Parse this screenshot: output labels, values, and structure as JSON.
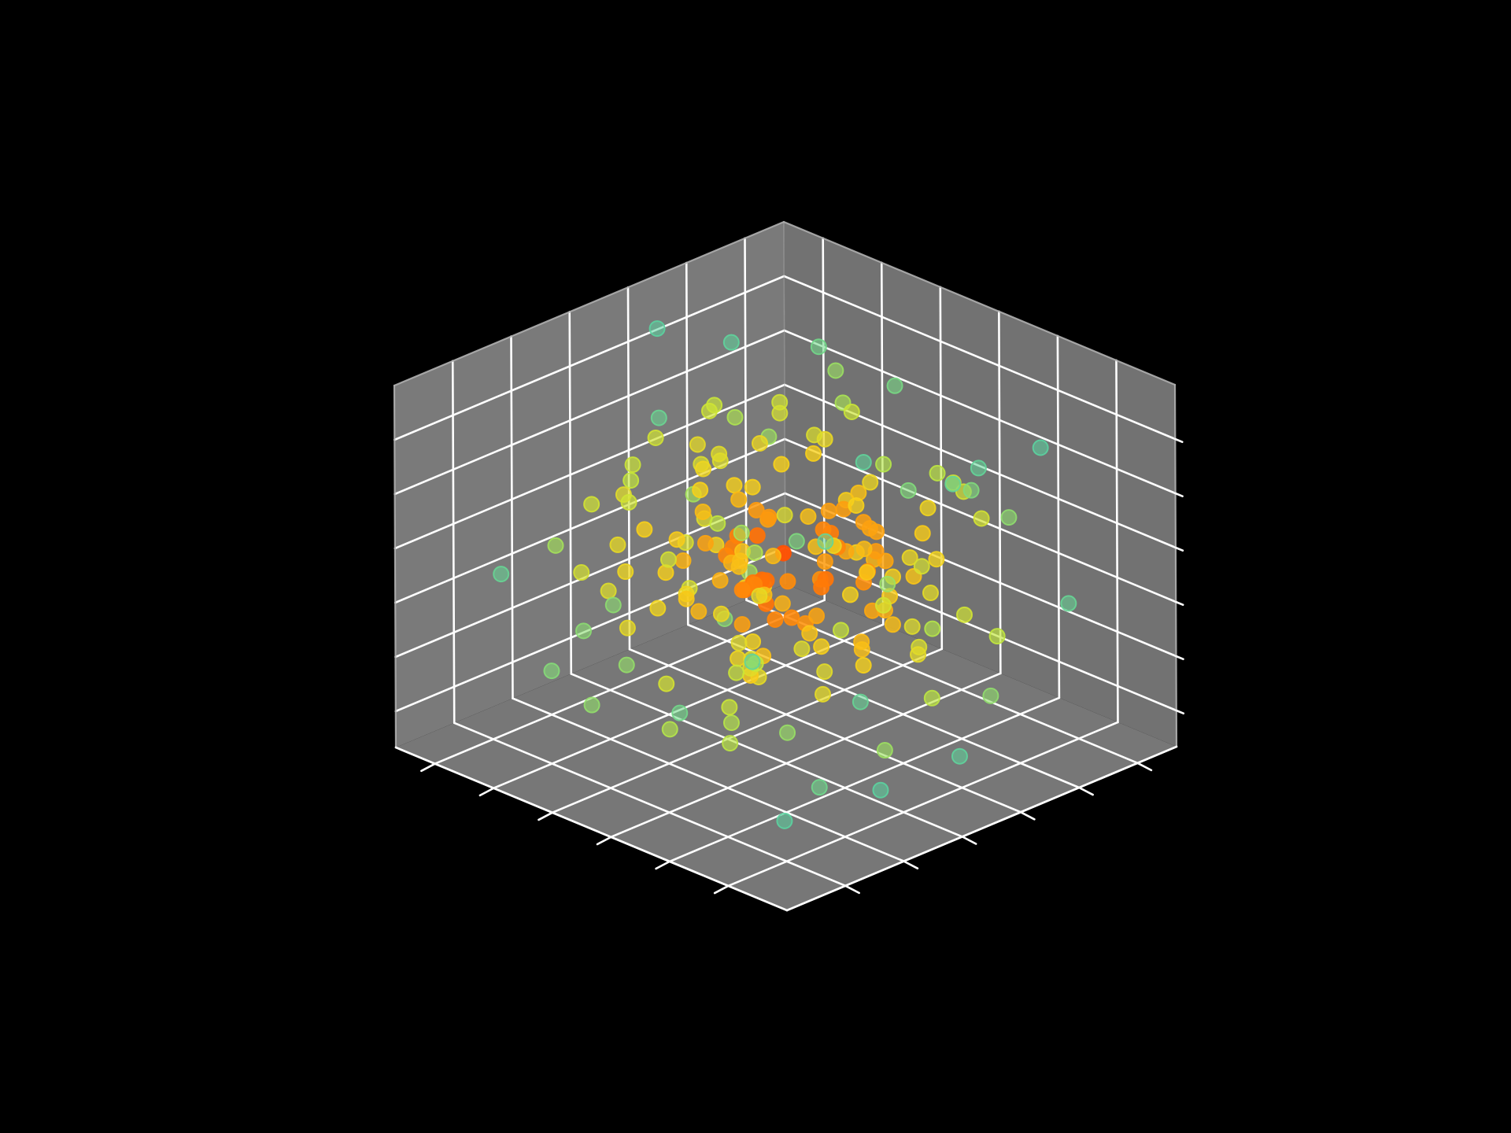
{
  "chart_data": {
    "type": "scatter",
    "projection": "3d",
    "title": "",
    "xlabel": "",
    "ylabel": "",
    "zlabel": "",
    "grid": true,
    "legend": "none",
    "tick_labels_visible": false,
    "xlim": [
      0,
      1
    ],
    "ylim": [
      0,
      1
    ],
    "zlim": [
      0,
      1
    ],
    "ticks": [
      0.1,
      0.25,
      0.4,
      0.55,
      0.7,
      0.85
    ],
    "colormap": [
      "#5bd3a0",
      "#c5e83a",
      "#f7d21a",
      "#ff8a0a",
      "#ff3a00"
    ],
    "colors": {
      "background": "#000000",
      "pane": "#7a7a7a",
      "pane_edge": "#b0b0b0",
      "grid": "#ffffff",
      "tick": "#ffffff"
    },
    "point_count": 200,
    "seed": 7,
    "points": []
  }
}
